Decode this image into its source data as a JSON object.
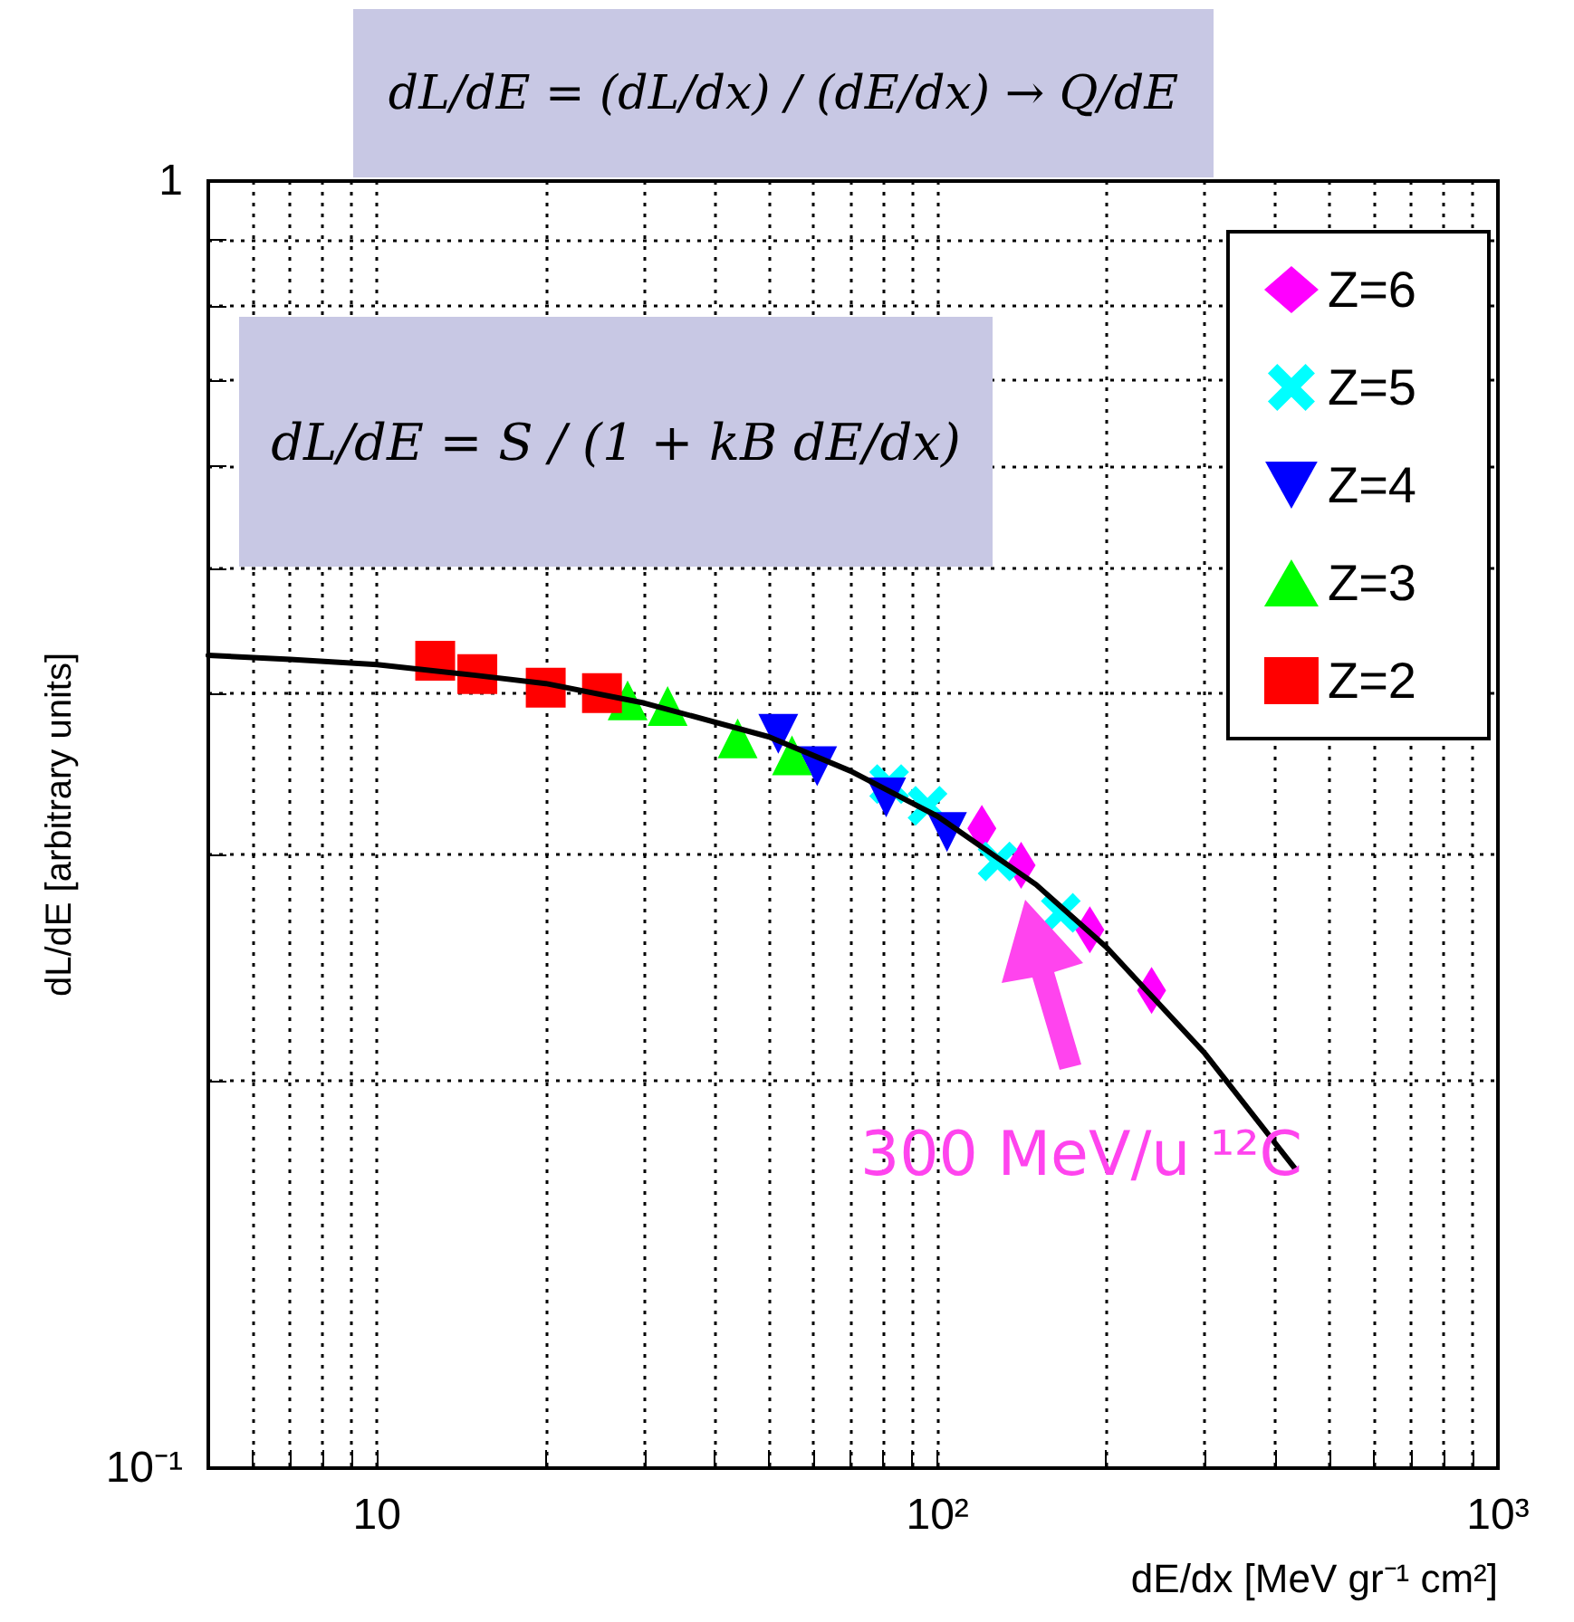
{
  "chart_data": {
    "type": "scatter",
    "xlabel": "dE/dx [MeV gr⁻¹ cm²]",
    "ylabel": "dL/dE [arbitrary units]",
    "log": "xy",
    "xlim": [
      5,
      1000
    ],
    "ylim": [
      0.1,
      1
    ],
    "xticks": [
      {
        "value": 6,
        "label": null
      },
      {
        "value": 7,
        "label": null
      },
      {
        "value": 8,
        "label": null
      },
      {
        "value": 9,
        "label": null
      },
      10,
      {
        "value": 20,
        "label": null
      },
      {
        "value": 30,
        "label": null
      },
      {
        "value": 40,
        "label": null
      },
      {
        "value": 50,
        "label": null
      },
      {
        "value": 60,
        "label": null
      },
      {
        "value": 70,
        "label": null
      },
      {
        "value": 80,
        "label": null
      },
      {
        "value": 90,
        "label": null
      },
      {
        "value": 100,
        "label": "10²"
      },
      {
        "value": 200,
        "label": null
      },
      {
        "value": 300,
        "label": null
      },
      {
        "value": 400,
        "label": null
      },
      {
        "value": 500,
        "label": null
      },
      {
        "value": 600,
        "label": null
      },
      {
        "value": 700,
        "label": null
      },
      {
        "value": 800,
        "label": null
      },
      {
        "value": 900,
        "label": null
      },
      {
        "value": 1000,
        "label": "10³"
      }
    ],
    "yticks": [
      {
        "value": 0.1,
        "label": "10⁻¹"
      },
      {
        "value": 0.2,
        "label": null
      },
      {
        "value": 0.3,
        "label": null
      },
      {
        "value": 0.4,
        "label": null
      },
      {
        "value": 0.5,
        "label": null
      },
      {
        "value": 0.6,
        "label": null
      },
      {
        "value": 0.7,
        "label": null
      },
      {
        "value": 0.8,
        "label": null
      },
      {
        "value": 0.9,
        "label": null
      },
      1
    ],
    "grid": true,
    "legend": "top right",
    "series": [
      {
        "name": "Z=6",
        "color": "#ff00ff",
        "marker": "diamond",
        "x": [
          120,
          141,
          187,
          241
        ],
        "values": [
          0.314,
          0.294,
          0.262,
          0.235
        ]
      },
      {
        "name": "Z=5",
        "color": "#00ffff",
        "marker": "cross",
        "x": [
          82,
          96,
          128,
          166
        ],
        "values": [
          0.34,
          0.327,
          0.296,
          0.27
        ]
      },
      {
        "name": "Z=4",
        "color": "#0000ff",
        "marker": "triangle-down",
        "x": [
          52,
          61,
          81,
          104
        ],
        "values": [
          0.372,
          0.351,
          0.332,
          0.312
        ]
      },
      {
        "name": "Z=3",
        "color": "#00ff00",
        "marker": "triangle",
        "x": [
          28,
          33,
          44,
          55
        ],
        "values": [
          0.395,
          0.391,
          0.369,
          0.358
        ]
      },
      {
        "name": "Z=2",
        "color": "#ff0000",
        "marker": "square",
        "x": [
          12.7,
          15.1,
          20,
          25.2
        ],
        "values": [
          0.424,
          0.414,
          0.404,
          0.4
        ]
      },
      {
        "type": "line",
        "color": "#000000",
        "marker": "none",
        "x": [
          5,
          7,
          10,
          15,
          20,
          30,
          50,
          70,
          100,
          150,
          200,
          300,
          434
        ],
        "values": [
          0.428,
          0.425,
          0.421,
          0.413,
          0.407,
          0.393,
          0.37,
          0.348,
          0.321,
          0.284,
          0.254,
          0.21,
          0.171
        ]
      }
    ],
    "annotations": [
      "dL/dE = (dL/dx) / (dE/dx) → Q/dE",
      "dL/dE = S / (1 + kB dE/dx)",
      "300 MeV/u ¹²C"
    ]
  }
}
